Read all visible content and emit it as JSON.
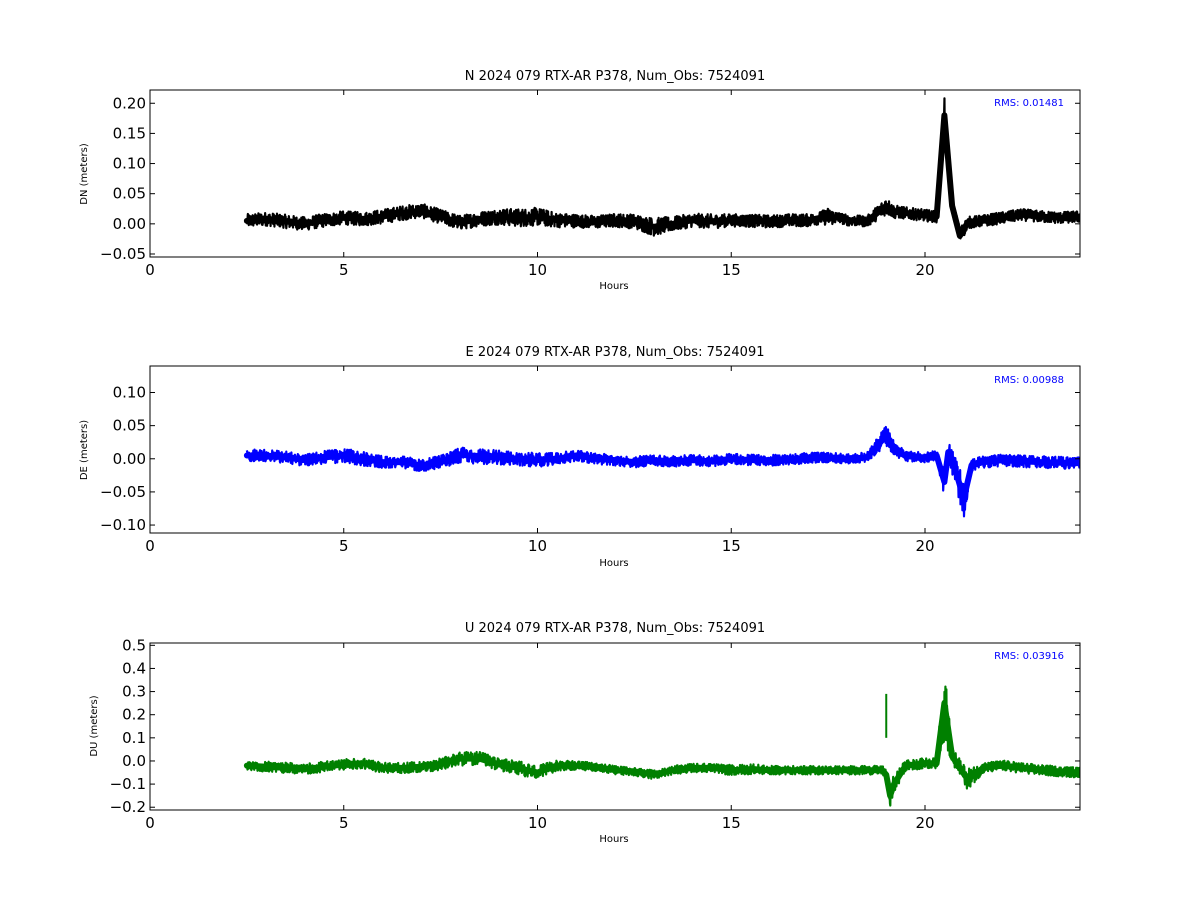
{
  "chart_data": [
    {
      "type": "line",
      "title": "N 2024 079 RTX-AR  P378, Num_Obs: 7524091",
      "xlabel": "Hours",
      "ylabel": "DN (meters)",
      "xlim": [
        0,
        24
      ],
      "ylim": [
        -0.055,
        0.222
      ],
      "xticks": [
        "0",
        "5",
        "10",
        "15",
        "20"
      ],
      "yticks": [
        "−0.05",
        "0.00",
        "0.05",
        "0.10",
        "0.15",
        "0.20"
      ],
      "rms_label": "RMS:  0.01481",
      "color": "#000000",
      "rms_color": "#0000ff",
      "grid": false,
      "series": [
        {
          "x": [
            2.5,
            3,
            3.5,
            4,
            4.5,
            5,
            5.5,
            6,
            6.5,
            7,
            7.5,
            8,
            8.5,
            9,
            9.5,
            10,
            10.5,
            11,
            11.5,
            12,
            12.5,
            13,
            13.5,
            14,
            14.5,
            15,
            15.5,
            16,
            16.5,
            17,
            17.3,
            17.5,
            17.8,
            18,
            18.5,
            19,
            19.2,
            19.5,
            20,
            20.3,
            20.5,
            20.7,
            20.9,
            21.1,
            21.5,
            22,
            22.5,
            23,
            23.5,
            24
          ],
          "y": [
            0.005,
            0.008,
            0.004,
            0.0,
            0.006,
            0.01,
            0.008,
            0.012,
            0.018,
            0.022,
            0.012,
            0.002,
            0.008,
            0.012,
            0.01,
            0.012,
            0.006,
            0.005,
            0.003,
            0.006,
            0.004,
            -0.005,
            0.0,
            0.006,
            0.004,
            0.006,
            0.005,
            0.004,
            0.006,
            0.006,
            0.01,
            0.012,
            0.01,
            0.006,
            0.004,
            0.03,
            0.02,
            0.018,
            0.014,
            0.012,
            0.18,
            0.03,
            -0.02,
            0.002,
            0.005,
            0.01,
            0.015,
            0.012,
            0.01,
            0.012
          ],
          "band": [
            0.015,
            0.015,
            0.015,
            0.015,
            0.015,
            0.015,
            0.015,
            0.016,
            0.016,
            0.016,
            0.016,
            0.016,
            0.016,
            0.018,
            0.02,
            0.02,
            0.016,
            0.015,
            0.014,
            0.015,
            0.016,
            0.02,
            0.016,
            0.015,
            0.016,
            0.014,
            0.014,
            0.014,
            0.014,
            0.014,
            0.014,
            0.02,
            0.012,
            0.012,
            0.012,
            0.02,
            0.015,
            0.013,
            0.013,
            0.013,
            0.04,
            0.015,
            0.02,
            0.013,
            0.013,
            0.013,
            0.013,
            0.013,
            0.013,
            0.013
          ]
        }
      ]
    },
    {
      "type": "line",
      "title": "E 2024 079 RTX-AR  P378, Num_Obs: 7524091",
      "xlabel": "Hours",
      "ylabel": "DE (meters)",
      "xlim": [
        0,
        24
      ],
      "ylim": [
        -0.112,
        0.14
      ],
      "xticks": [
        "0",
        "5",
        "10",
        "15",
        "20"
      ],
      "yticks": [
        "−0.10",
        "−0.05",
        "0.00",
        "0.05",
        "0.10"
      ],
      "rms_label": "RMS:  0.00988",
      "color": "#0000ff",
      "rms_color": "#0000ff",
      "grid": false,
      "series": [
        {
          "x": [
            2.5,
            3,
            3.5,
            4,
            4.5,
            5,
            5.5,
            6,
            6.5,
            7,
            7.5,
            8,
            8.5,
            9,
            9.5,
            10,
            10.5,
            11,
            11.5,
            12,
            12.5,
            13,
            13.5,
            14,
            14.5,
            15,
            15.5,
            16,
            16.5,
            17,
            17.5,
            18,
            18.5,
            19,
            19.2,
            19.5,
            20,
            20.3,
            20.5,
            20.6,
            20.8,
            21,
            21.2,
            21.5,
            22,
            22.5,
            23,
            23.5,
            24
          ],
          "y": [
            0.005,
            0.005,
            0.002,
            -0.002,
            0.002,
            0.005,
            0.0,
            -0.005,
            -0.005,
            -0.01,
            -0.005,
            0.006,
            0.004,
            0.002,
            0.0,
            -0.002,
            0.0,
            0.005,
            0.0,
            -0.002,
            -0.005,
            -0.002,
            -0.004,
            -0.002,
            -0.004,
            0.0,
            -0.002,
            -0.002,
            -0.002,
            0.002,
            0.002,
            0.0,
            0.002,
            0.035,
            0.015,
            0.004,
            0.002,
            0.005,
            -0.035,
            0.01,
            -0.02,
            -0.06,
            -0.01,
            -0.005,
            -0.002,
            -0.004,
            -0.005,
            -0.006,
            -0.006
          ],
          "band": [
            0.012,
            0.012,
            0.012,
            0.012,
            0.013,
            0.014,
            0.014,
            0.012,
            0.012,
            0.012,
            0.013,
            0.016,
            0.016,
            0.014,
            0.014,
            0.014,
            0.012,
            0.011,
            0.011,
            0.011,
            0.011,
            0.011,
            0.011,
            0.011,
            0.011,
            0.011,
            0.011,
            0.011,
            0.011,
            0.011,
            0.01,
            0.01,
            0.01,
            0.02,
            0.015,
            0.01,
            0.01,
            0.01,
            0.03,
            0.02,
            0.03,
            0.04,
            0.012,
            0.012,
            0.012,
            0.012,
            0.012,
            0.012,
            0.012
          ]
        }
      ]
    },
    {
      "type": "line",
      "title": "U 2024 079 RTX-AR  P378, Num_Obs: 7524091",
      "xlabel": "Hours",
      "ylabel": "DU (meters)",
      "xlim": [
        0,
        24
      ],
      "ylim": [
        -0.212,
        0.51
      ],
      "xticks": [
        "0",
        "5",
        "10",
        "15",
        "20"
      ],
      "yticks": [
        "−0.2",
        "−0.1",
        "0.0",
        "0.1",
        "0.2",
        "0.3",
        "0.4",
        "0.5"
      ],
      "rms_label": "RMS:  0.03916",
      "color": "#008000",
      "rms_color": "#0000ff",
      "grid": false,
      "series": [
        {
          "x": [
            2.5,
            3,
            3.5,
            4,
            4.5,
            5,
            5.5,
            6,
            6.5,
            7,
            7.5,
            8,
            8.5,
            9,
            9.5,
            10,
            10.5,
            11,
            11.5,
            12,
            12.5,
            13,
            13.5,
            14,
            14.5,
            15,
            15.5,
            16,
            16.5,
            17,
            17.5,
            18,
            18.5,
            18.9,
            19.0,
            19.1,
            19.2,
            19.5,
            20,
            20.3,
            20.5,
            20.7,
            20.9,
            21.1,
            21.5,
            22,
            22.5,
            23,
            23.5,
            24
          ],
          "y": [
            -0.02,
            -0.025,
            -0.03,
            -0.035,
            -0.025,
            -0.015,
            -0.01,
            -0.03,
            -0.03,
            -0.025,
            -0.015,
            0.01,
            0.01,
            -0.015,
            -0.03,
            -0.05,
            -0.02,
            -0.02,
            -0.025,
            -0.04,
            -0.045,
            -0.06,
            -0.04,
            -0.03,
            -0.03,
            -0.04,
            -0.035,
            -0.04,
            -0.04,
            -0.04,
            -0.04,
            -0.04,
            -0.04,
            -0.04,
            -0.06,
            -0.15,
            -0.1,
            -0.02,
            -0.01,
            -0.01,
            0.25,
            0.02,
            -0.03,
            -0.08,
            -0.03,
            -0.02,
            -0.03,
            -0.04,
            -0.045,
            -0.05
          ],
          "band": [
            0.03,
            0.03,
            0.03,
            0.03,
            0.03,
            0.03,
            0.03,
            0.03,
            0.03,
            0.03,
            0.035,
            0.04,
            0.04,
            0.035,
            0.04,
            0.04,
            0.03,
            0.025,
            0.025,
            0.025,
            0.025,
            0.025,
            0.025,
            0.025,
            0.025,
            0.03,
            0.03,
            0.025,
            0.025,
            0.025,
            0.025,
            0.025,
            0.025,
            0.025,
            0.03,
            0.06,
            0.06,
            0.03,
            0.03,
            0.03,
            0.22,
            0.05,
            0.05,
            0.06,
            0.03,
            0.03,
            0.03,
            0.03,
            0.03,
            0.03
          ],
          "spike": {
            "x": 19.0,
            "y_low": 0.1,
            "y_high": 0.29
          }
        }
      ]
    }
  ]
}
